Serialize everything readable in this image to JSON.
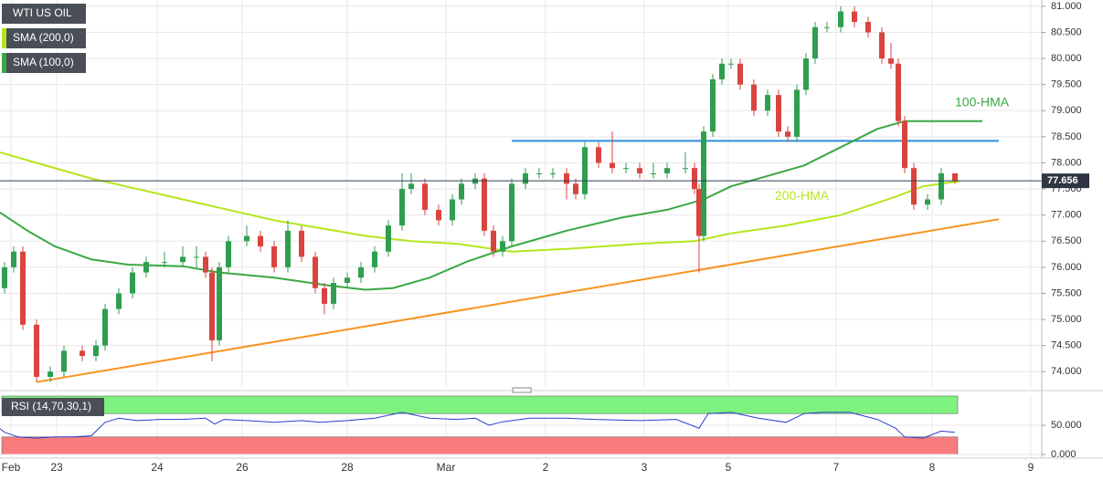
{
  "chart_data": [
    {
      "type": "candlestick",
      "title": "WTI US OIL",
      "x": [
        5,
        15,
        25,
        40,
        55,
        70,
        90,
        105,
        115,
        130,
        145,
        160,
        180,
        200,
        215,
        225,
        232,
        240,
        250,
        270,
        285,
        300,
        315,
        330,
        345,
        355,
        365,
        380,
        395,
        410,
        425,
        440,
        450,
        465,
        480,
        495,
        505,
        520,
        530,
        540,
        550,
        560,
        575,
        590,
        605,
        620,
        630,
        640,
        655,
        670,
        685,
        700,
        715,
        730,
        750,
        760,
        765,
        770,
        780,
        790,
        800,
        810,
        825,
        840,
        852,
        862,
        872,
        882,
        892,
        905,
        920,
        935,
        950,
        965,
        975,
        983,
        990,
        1000,
        1015,
        1030,
        1045
      ],
      "open": [
        75.6,
        76.0,
        76.3,
        74.9,
        73.9,
        74.0,
        74.4,
        74.3,
        74.5,
        75.2,
        75.5,
        75.9,
        76.1,
        76.1,
        76.2,
        76.2,
        75.9,
        74.6,
        76.0,
        76.5,
        76.6,
        76.4,
        76.0,
        76.7,
        76.2,
        75.6,
        75.3,
        75.7,
        75.8,
        76.0,
        76.3,
        76.8,
        77.5,
        77.6,
        77.1,
        76.9,
        77.3,
        77.6,
        77.7,
        76.7,
        76.3,
        76.5,
        77.6,
        77.8,
        77.8,
        77.8,
        77.6,
        77.4,
        78.3,
        78.0,
        77.9,
        77.9,
        77.8,
        77.8,
        77.9,
        77.9,
        77.5,
        76.6,
        78.6,
        79.6,
        79.9,
        79.9,
        79.5,
        79.0,
        79.3,
        78.6,
        78.5,
        79.4,
        80.0,
        80.6,
        80.6,
        80.9,
        80.7,
        80.5,
        80.0,
        79.9,
        78.8,
        77.9,
        77.2,
        77.3,
        77.8
      ],
      "high": [
        76.1,
        76.4,
        76.4,
        75.0,
        74.1,
        74.5,
        74.5,
        74.6,
        75.3,
        75.6,
        76.0,
        76.2,
        76.3,
        76.4,
        76.4,
        76.3,
        76.0,
        76.1,
        76.6,
        76.8,
        76.7,
        76.5,
        76.9,
        76.8,
        76.3,
        75.7,
        75.8,
        75.9,
        76.1,
        76.4,
        76.9,
        77.8,
        77.8,
        77.7,
        77.2,
        77.4,
        77.7,
        77.8,
        77.8,
        76.8,
        76.6,
        77.7,
        77.9,
        77.9,
        77.9,
        77.9,
        77.7,
        78.4,
        78.4,
        78.6,
        78.0,
        78.0,
        78.0,
        78.0,
        78.2,
        78.0,
        77.6,
        78.7,
        79.7,
        80.0,
        80.0,
        80.0,
        79.6,
        79.4,
        79.4,
        78.7,
        79.5,
        80.1,
        80.7,
        80.7,
        81.0,
        81.0,
        80.8,
        80.6,
        80.3,
        80.0,
        78.9,
        78.0,
        77.4,
        77.9,
        77.8
      ],
      "low": [
        75.5,
        75.9,
        74.8,
        73.8,
        73.8,
        73.9,
        74.2,
        74.2,
        74.4,
        75.1,
        75.4,
        75.8,
        76.0,
        76.0,
        76.0,
        75.8,
        74.2,
        74.5,
        75.9,
        76.4,
        76.3,
        75.9,
        75.9,
        76.1,
        75.5,
        75.1,
        75.2,
        75.6,
        75.7,
        75.9,
        76.2,
        76.7,
        77.4,
        77.0,
        76.8,
        76.8,
        77.2,
        77.5,
        76.6,
        76.2,
        76.2,
        76.4,
        77.5,
        77.7,
        77.7,
        77.3,
        77.3,
        77.3,
        77.9,
        77.8,
        77.8,
        77.7,
        77.7,
        77.7,
        77.8,
        77.4,
        75.9,
        76.5,
        78.5,
        79.5,
        79.8,
        79.4,
        78.9,
        78.9,
        78.5,
        78.4,
        78.4,
        79.3,
        79.9,
        80.5,
        80.5,
        80.6,
        80.4,
        79.9,
        79.8,
        78.7,
        77.8,
        77.1,
        77.1,
        77.2,
        77.6
      ],
      "close": [
        76.0,
        76.3,
        74.9,
        73.9,
        74.0,
        74.4,
        74.3,
        74.5,
        75.2,
        75.5,
        75.9,
        76.1,
        76.1,
        76.2,
        76.2,
        75.9,
        74.6,
        76.0,
        76.5,
        76.6,
        76.4,
        76.0,
        76.7,
        76.2,
        75.6,
        75.3,
        75.7,
        75.8,
        76.0,
        76.3,
        76.8,
        77.5,
        77.6,
        77.1,
        76.9,
        77.3,
        77.6,
        77.7,
        76.7,
        76.3,
        76.5,
        77.6,
        77.8,
        77.8,
        77.8,
        77.6,
        77.4,
        78.3,
        78.0,
        77.9,
        77.9,
        77.8,
        77.8,
        77.9,
        77.9,
        77.5,
        76.6,
        78.6,
        79.6,
        79.9,
        79.9,
        79.5,
        79.0,
        79.3,
        78.6,
        78.5,
        79.4,
        80.0,
        80.6,
        80.6,
        80.9,
        80.7,
        80.5,
        80.0,
        79.9,
        78.8,
        77.9,
        77.2,
        77.3,
        77.8,
        77.66
      ],
      "up_color": "#2f9e4f",
      "down_color": "#d9443f",
      "series": [
        {
          "name": "SMA (200,0)",
          "label": "200-HMA",
          "color": "#b5e61d",
          "x": [
            0,
            40,
            100,
            200,
            300,
            400,
            450,
            500,
            560,
            620,
            700,
            760,
            800,
            860,
            920,
            980,
            1010,
            1050
          ],
          "values": [
            78.2,
            78.0,
            77.7,
            77.3,
            76.9,
            76.6,
            76.5,
            76.45,
            76.3,
            76.35,
            76.45,
            76.5,
            76.65,
            76.8,
            77.0,
            77.35,
            77.55,
            77.65
          ]
        },
        {
          "name": "SMA (100,0)",
          "label": "100-HMA",
          "color": "#3aa843",
          "x": [
            0,
            30,
            60,
            100,
            140,
            200,
            240,
            300,
            360,
            400,
            430,
            470,
            510,
            560,
            620,
            680,
            730,
            770,
            800,
            840,
            880,
            920,
            960,
            990,
            1075
          ],
          "values": [
            77.05,
            76.7,
            76.4,
            76.15,
            76.05,
            76.02,
            75.9,
            75.8,
            75.65,
            75.57,
            75.6,
            75.8,
            76.1,
            76.4,
            76.7,
            76.95,
            77.1,
            77.3,
            77.55,
            77.75,
            77.95,
            78.3,
            78.65,
            78.8,
            78.8
          ]
        }
      ],
      "trendlines": [
        {
          "color": "#f7931e",
          "x": [
            40,
            1093
          ],
          "values": [
            73.8,
            76.92
          ]
        },
        {
          "color": "#2b8fe0",
          "x": [
            560,
            1093
          ],
          "values": [
            78.42,
            78.42
          ]
        }
      ],
      "last_price": 77.656,
      "xlim": [
        0,
        1140
      ],
      "xticks": [
        {
          "value": 12,
          "label": "Feb"
        },
        {
          "value": 62,
          "label": "23"
        },
        {
          "value": 172,
          "label": "24"
        },
        {
          "value": 265,
          "label": "26"
        },
        {
          "value": 380,
          "label": "28"
        },
        {
          "value": 488,
          "label": "Mar"
        },
        {
          "value": 597,
          "label": "2"
        },
        {
          "value": 705,
          "label": "3"
        },
        {
          "value": 797,
          "label": "5"
        },
        {
          "value": 915,
          "label": "7"
        },
        {
          "value": 1020,
          "label": "8"
        },
        {
          "value": 1128,
          "label": "9"
        }
      ],
      "ylim": [
        73.69,
        81.12
      ],
      "yticks": [
        {
          "value": 74,
          "label": "74.000"
        },
        {
          "value": 74.5,
          "label": "74.500"
        },
        {
          "value": 75,
          "label": "75.000"
        },
        {
          "value": 75.5,
          "label": "75.500"
        },
        {
          "value": 76,
          "label": "76.000"
        },
        {
          "value": 76.5,
          "label": "76.500"
        },
        {
          "value": 77,
          "label": "77.000"
        },
        {
          "value": 77.5,
          "label": "77.500"
        },
        {
          "value": 78,
          "label": "78.000"
        },
        {
          "value": 78.5,
          "label": "78.500"
        },
        {
          "value": 79,
          "label": "79.000"
        },
        {
          "value": 79.5,
          "label": "79.500"
        },
        {
          "value": 80,
          "label": "80.000"
        },
        {
          "value": 80.5,
          "label": "80.500"
        },
        {
          "value": 81,
          "label": "81.000"
        }
      ],
      "grid": true
    },
    {
      "type": "line",
      "title": "RSI (14,70,30,1)",
      "color": "#2a3fcf",
      "x": [
        0,
        5,
        20,
        40,
        60,
        80,
        100,
        115,
        130,
        150,
        175,
        200,
        225,
        235,
        245,
        270,
        300,
        330,
        350,
        380,
        410,
        440,
        470,
        500,
        520,
        535,
        550,
        580,
        620,
        650,
        700,
        740,
        765,
        775,
        800,
        830,
        860,
        880,
        900,
        930,
        960,
        980,
        990,
        1010,
        1030,
        1045
      ],
      "values": [
        44,
        38,
        30,
        28,
        30,
        30,
        32,
        55,
        62,
        58,
        60,
        60,
        62,
        52,
        60,
        58,
        55,
        58,
        55,
        58,
        62,
        72,
        62,
        60,
        62,
        50,
        56,
        62,
        62,
        60,
        58,
        60,
        45,
        70,
        72,
        62,
        55,
        70,
        72,
        72,
        60,
        45,
        30,
        28,
        40,
        38
      ],
      "bands": [
        {
          "from": 70,
          "to": 100,
          "color": "#7ef27e"
        },
        {
          "from": 0,
          "to": 30,
          "color": "#f87c7c"
        }
      ],
      "ylim": [
        -6.25,
        103.1
      ],
      "yticks": [
        {
          "value": 50,
          "label": "50.000"
        },
        {
          "value": 0,
          "label": "0.000"
        }
      ],
      "grid": true
    }
  ]
}
